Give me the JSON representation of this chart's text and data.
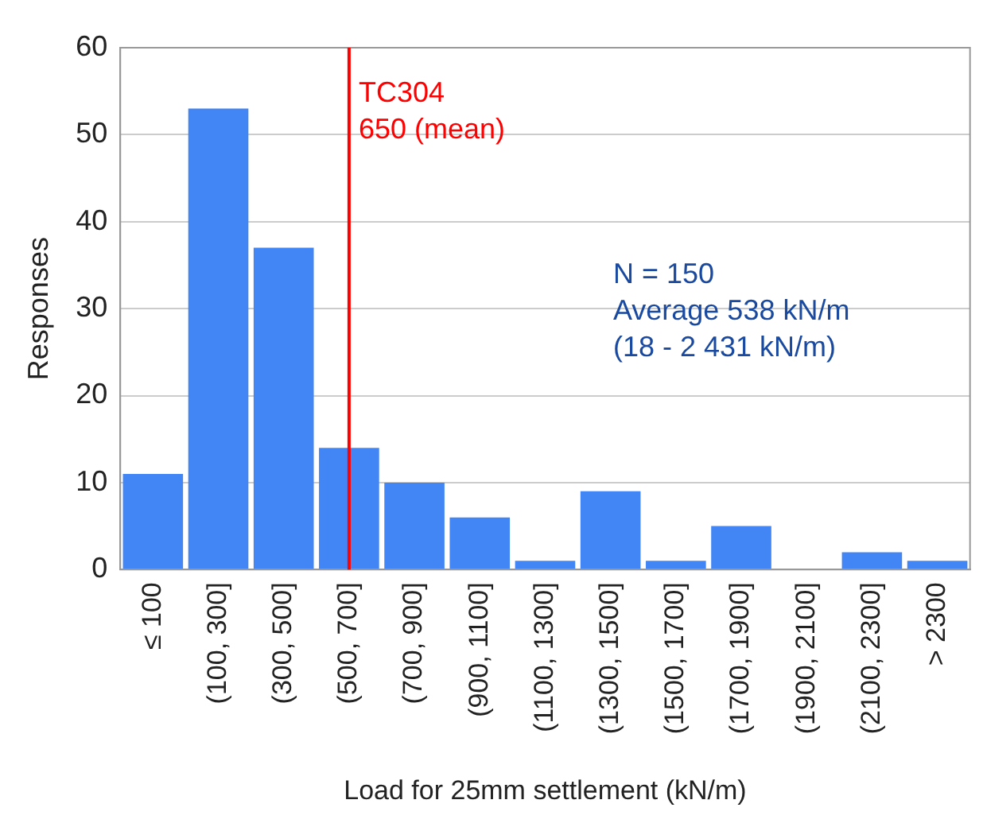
{
  "chart_data": {
    "type": "bar",
    "xlabel": "Load for 25mm settlement (kN/m)",
    "ylabel": "Responses",
    "categories": [
      "≤ 100",
      "(100, 300]",
      "(300, 500]",
      "(500, 700]",
      "(700, 900]",
      "(900, 1100]",
      "(1100, 1300]",
      "(1300, 1500]",
      "(1500, 1700]",
      "(1700, 1900]",
      "(1900, 2100]",
      "(2100, 2300]",
      "> 2300"
    ],
    "values": [
      11,
      53,
      37,
      14,
      10,
      6,
      1,
      9,
      1,
      5,
      0,
      2,
      1
    ],
    "color": "#4285f4",
    "ylim": [
      0,
      60
    ],
    "yticks": [
      0,
      10,
      20,
      30,
      40,
      50,
      60
    ],
    "grid": "y",
    "legend": false,
    "ref_lines": [
      {
        "axis": "x",
        "value": "(500, 700]",
        "label": "TC304\n650 (mean)",
        "color": "#ff0000"
      }
    ],
    "annotations": [
      "N = 150",
      "Average 538 kN/m",
      "(18 - 2 431 kN/m)"
    ]
  }
}
